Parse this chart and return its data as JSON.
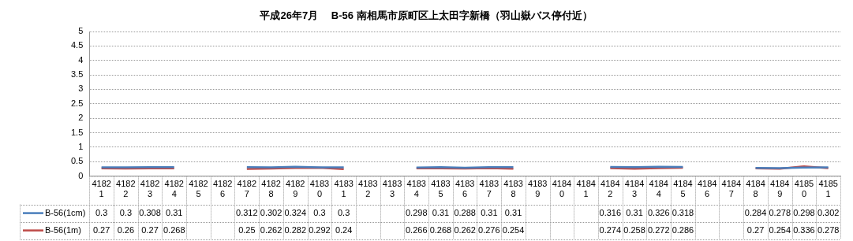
{
  "chart_data": {
    "type": "line",
    "title": "平成26年7月　 B-56 南相馬市原町区上太田字新橋（羽山嶽バス停付近）",
    "categories": [
      "41821",
      "41822",
      "41823",
      "41824",
      "41825",
      "41826",
      "41827",
      "41828",
      "41829",
      "41830",
      "41831",
      "41832",
      "41833",
      "41834",
      "41835",
      "41836",
      "41837",
      "41838",
      "41839",
      "41840",
      "41841",
      "41842",
      "41843",
      "41844",
      "41845",
      "41846",
      "41847",
      "41848",
      "41849",
      "41850",
      "41851"
    ],
    "series": [
      {
        "name": "B-56(1cm)",
        "color": "#4a7ebb",
        "values": [
          0.3,
          0.3,
          0.308,
          0.31,
          null,
          null,
          0.312,
          0.302,
          0.324,
          0.3,
          0.3,
          null,
          null,
          0.298,
          0.31,
          0.288,
          0.31,
          0.31,
          null,
          null,
          null,
          0.316,
          0.31,
          0.326,
          0.318,
          null,
          null,
          0.284,
          0.278,
          0.298,
          0.302
        ]
      },
      {
        "name": "B-56(1m)",
        "color": "#be4b48",
        "values": [
          0.27,
          0.26,
          0.27,
          0.268,
          null,
          null,
          0.25,
          0.262,
          0.282,
          0.292,
          0.24,
          null,
          null,
          0.266,
          0.268,
          0.262,
          0.276,
          0.254,
          null,
          null,
          null,
          0.274,
          0.258,
          0.272,
          0.286,
          null,
          null,
          0.27,
          0.254,
          0.336,
          0.278
        ]
      }
    ],
    "ylim": [
      0,
      5
    ],
    "yticks": [
      0,
      0.5,
      1,
      1.5,
      2,
      2.5,
      3,
      3.5,
      4,
      4.5,
      5
    ],
    "grid": "y",
    "legend": "bottom",
    "data_labels": true,
    "marker": "none",
    "line_style": "solid"
  }
}
